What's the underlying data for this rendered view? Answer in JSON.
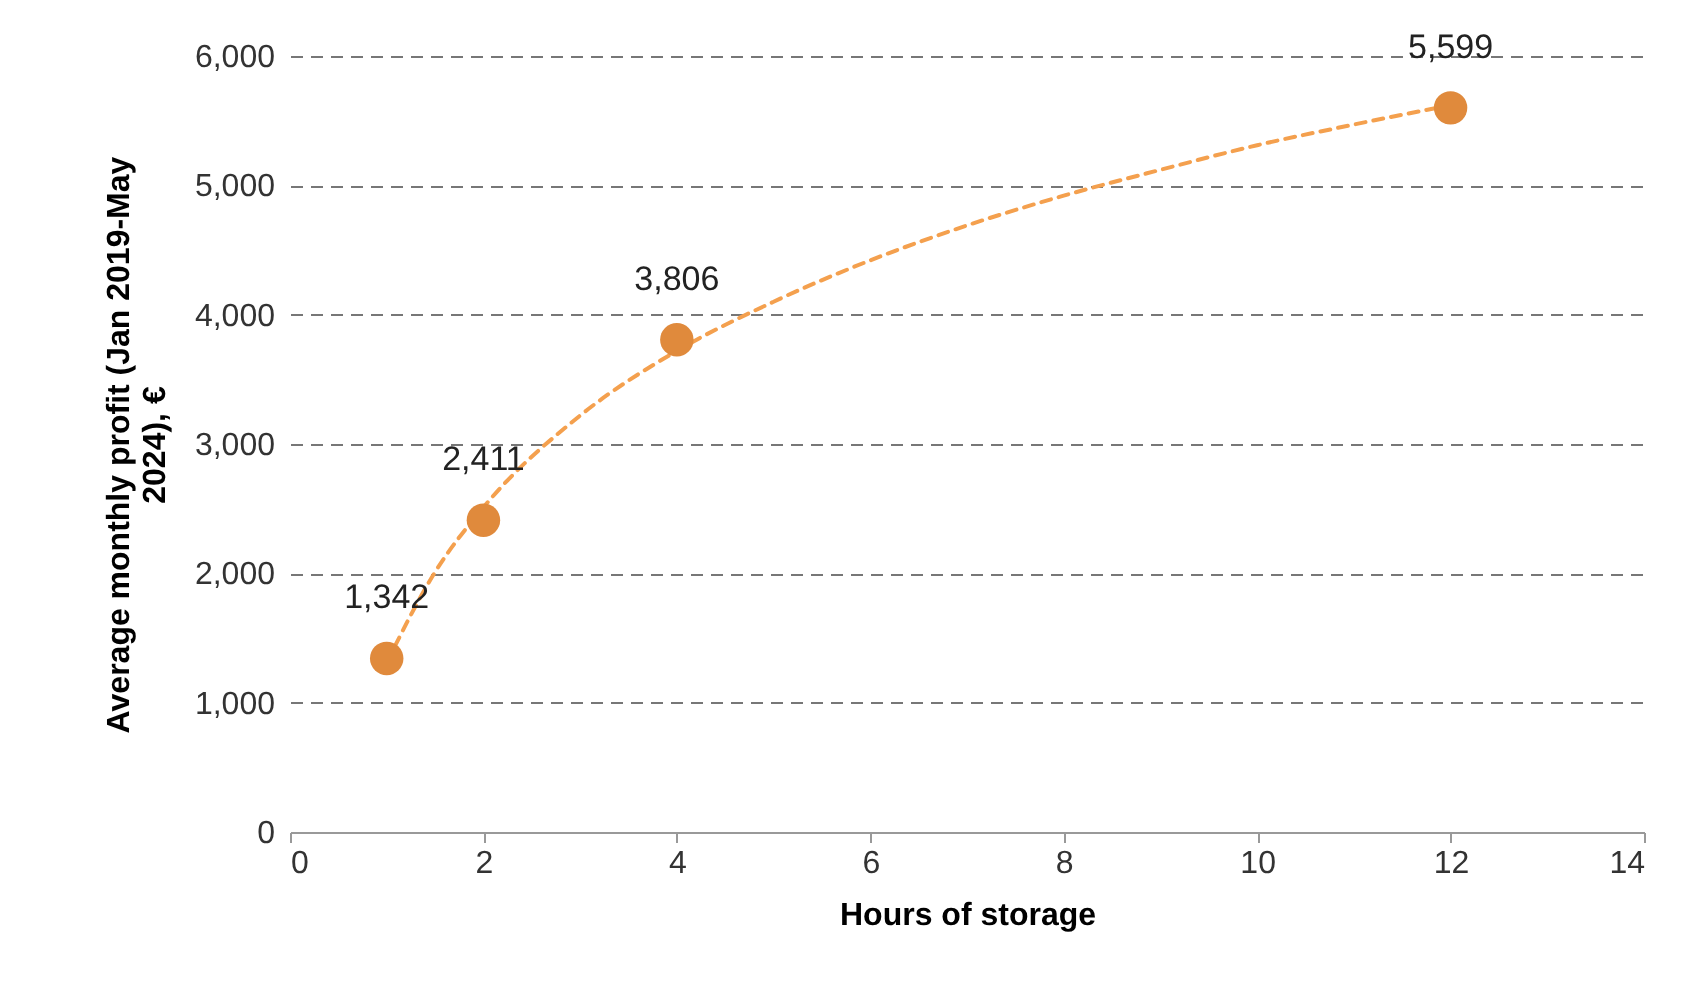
{
  "chart_data": {
    "type": "scatter",
    "xlabel": "Hours of storage",
    "ylabel": "Average monthly profit (Jan 2019-May 2024), €",
    "xlim": [
      0,
      14
    ],
    "xticks": [
      0,
      2,
      4,
      6,
      8,
      10,
      12,
      14
    ],
    "ylim": [
      0,
      6000
    ],
    "yticks": [
      0,
      {
        "value": 1000,
        "label": "1,000"
      },
      {
        "value": 2000,
        "label": "2,000"
      },
      {
        "value": 3000,
        "label": "3,000"
      },
      {
        "value": 4000,
        "label": "4,000"
      },
      {
        "value": 5000,
        "label": "5,000"
      },
      {
        "value": 6000,
        "label": "6,000"
      }
    ],
    "grid": "y",
    "series": [
      {
        "type": "line",
        "color": "#f4a04e",
        "line_style": "dashed",
        "marker": "none",
        "x": [
          1,
          1.5,
          2,
          3,
          4,
          5,
          6,
          7,
          8,
          9,
          10,
          11,
          12
        ],
        "values": [
          1310,
          2010,
          2510,
          3220,
          3720,
          4100,
          4420,
          4690,
          4920,
          5120,
          5310,
          5470,
          5620
        ]
      },
      {
        "color": "#e08a3c",
        "marker": "circle",
        "x": [
          1,
          2,
          4,
          12
        ],
        "values": [
          1342,
          2411,
          3806,
          5599
        ],
        "value_labels": [
          "1,342",
          "2,411",
          "3,806",
          "5,599"
        ]
      }
    ]
  }
}
